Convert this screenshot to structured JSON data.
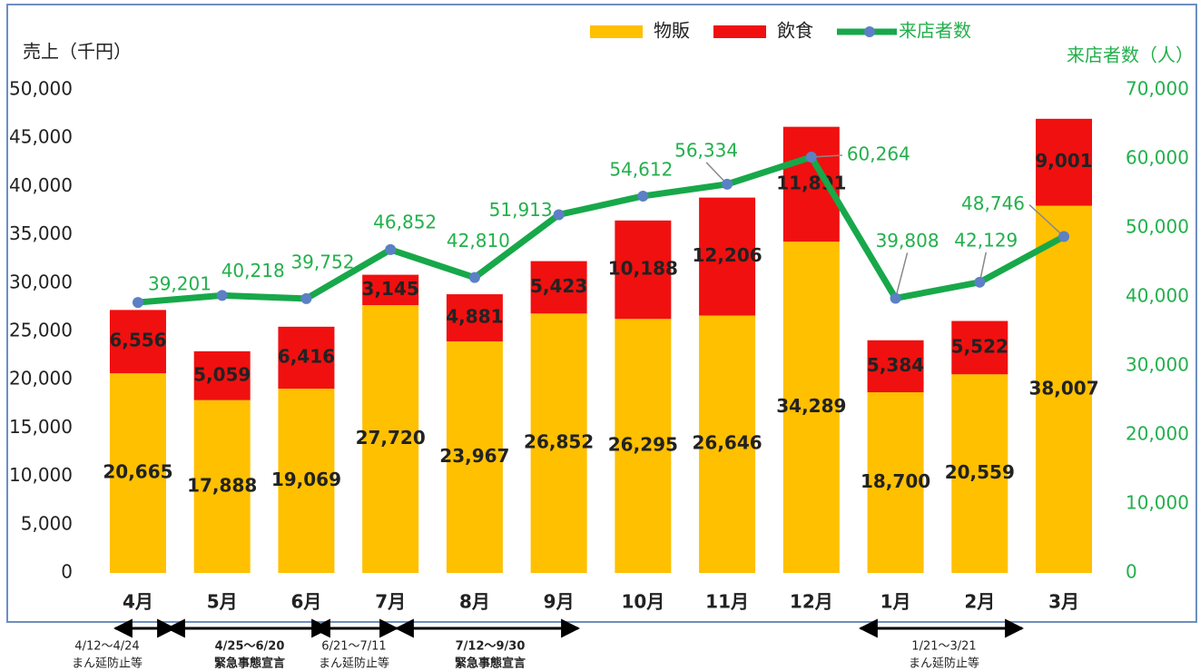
{
  "chart_data": {
    "type": "bar-line",
    "y_label": "売上（千円）",
    "y2_label": "来店者数（人）",
    "categories": [
      "4月",
      "5月",
      "6月",
      "7月",
      "8月",
      "9月",
      "10月",
      "11月",
      "12月",
      "1月",
      "2月",
      "3月"
    ],
    "series": [
      {
        "name": "物販",
        "color": "#ffc000",
        "type": "bar",
        "values": [
          20665,
          17888,
          19069,
          27720,
          23967,
          26852,
          26295,
          26646,
          34289,
          18700,
          20559,
          38007
        ],
        "value_labels": [
          "20,665",
          "17,888",
          "19,069",
          "27,720",
          "23,967",
          "26,852",
          "26,295",
          "26,646",
          "34,289",
          "18,700",
          "20,559",
          "38,007"
        ]
      },
      {
        "name": "飲食",
        "color": "#f01010",
        "type": "bar",
        "values": [
          6556,
          5059,
          6416,
          3145,
          4881,
          5423,
          10188,
          12206,
          11891,
          5384,
          5522,
          9001
        ],
        "value_labels": [
          "6,556",
          "5,059",
          "6,416",
          "3,145",
          "4,881",
          "5,423",
          "10,188",
          "12,206",
          "11,891",
          "5,384",
          "5,522",
          "9,001"
        ]
      },
      {
        "name": "来店者数",
        "color": "#17a84a",
        "marker_color": "#5b80c4",
        "type": "line",
        "axis": "y2",
        "values": [
          39201,
          40218,
          39752,
          46852,
          42810,
          51913,
          54612,
          56334,
          60264,
          39808,
          42129,
          48746
        ],
        "value_labels": [
          "39,201",
          "40,218",
          "39,752",
          "46,852",
          "42,810",
          "51,913",
          "54,612",
          "56,334",
          "60,264",
          "39,808",
          "42,129",
          "48,746"
        ]
      }
    ],
    "ylim": [
      0,
      50000
    ],
    "yticks": [
      0,
      {
        "value": 5000,
        "label": "5,000"
      },
      {
        "value": 10000,
        "label": "10,000"
      },
      {
        "value": 15000,
        "label": "15,000"
      },
      {
        "value": 20000,
        "label": "20,000"
      },
      {
        "value": 25000,
        "label": "25,000"
      },
      {
        "value": 30000,
        "label": "30,000"
      },
      {
        "value": 35000,
        "label": "35,000"
      },
      {
        "value": 40000,
        "label": "40,000"
      },
      {
        "value": 45000,
        "label": "45,000"
      },
      {
        "value": 50000,
        "label": "50,000"
      }
    ],
    "y2lim": [
      0,
      70000
    ],
    "y2ticks": [
      0,
      {
        "value": 10000,
        "label": "10,000"
      },
      {
        "value": 20000,
        "label": "20,000"
      },
      {
        "value": 30000,
        "label": "30,000"
      },
      {
        "value": 40000,
        "label": "40,000"
      },
      {
        "value": 50000,
        "label": "50,000"
      },
      {
        "value": 60000,
        "label": "60,000"
      },
      {
        "value": 70000,
        "label": "70,000"
      }
    ],
    "legend": "top",
    "annotations": [
      {
        "lines": [
          "4/12～4/24",
          "まん延防止等"
        ]
      },
      {
        "lines": [
          "4/25～6/20",
          "緊急事態宣言"
        ]
      },
      {
        "lines": [
          "6/21～7/11",
          "まん延防止等"
        ]
      },
      {
        "lines": [
          "7/12～9/30",
          "緊急事態宣言"
        ]
      },
      {
        "lines": [
          "1/21～3/21",
          "まん延防止等"
        ]
      }
    ]
  }
}
